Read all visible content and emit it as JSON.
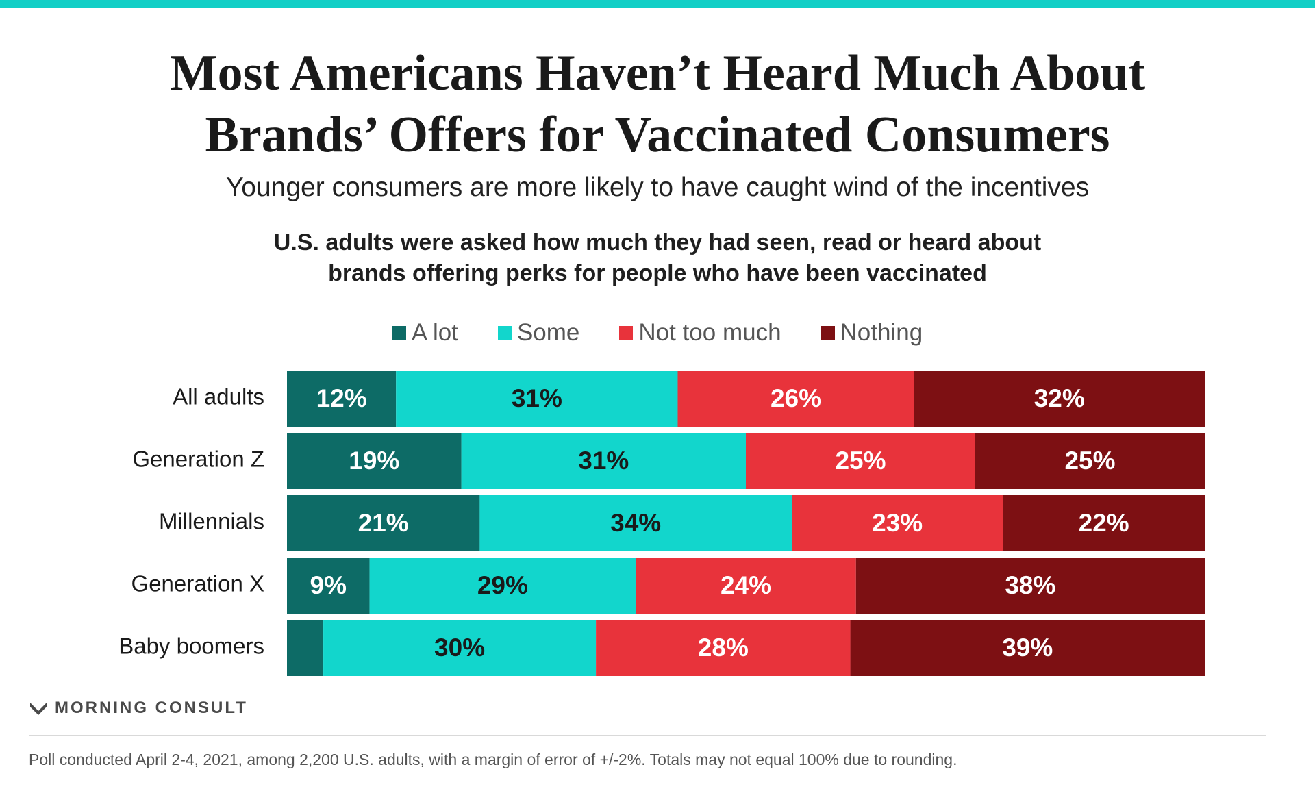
{
  "title_lines": [
    "Most Americans Haven’t Heard Much About",
    "Brands’ Offers for Vaccinated Consumers"
  ],
  "subtitle": "Younger consumers are more likely to have caught wind of the incentives",
  "question_lines": [
    "U.S. adults were asked how much they had seen, read or heard about",
    "brands offering perks for people who have been vaccinated"
  ],
  "colors": {
    "a_lot": "#0d6b66",
    "some": "#12d6cc",
    "not_too_much": "#e8333b",
    "nothing": "#7d1013",
    "accent_top": "#12cfc6"
  },
  "chart_data": {
    "type": "bar",
    "orientation": "horizontal",
    "stacked": true,
    "legend_position": "top",
    "grid": false,
    "categories": [
      "All adults",
      "Generation Z",
      "Millennials",
      "Generation X",
      "Baby boomers"
    ],
    "series": [
      {
        "name": "A lot",
        "color": "#0d6b66",
        "label_color": "#ffffff",
        "values": [
          12,
          19,
          21,
          9,
          4
        ],
        "labels": [
          "12%",
          "19%",
          "21%",
          "9%",
          ""
        ]
      },
      {
        "name": "Some",
        "color": "#12d6cc",
        "label_color": "#1a1a1a",
        "values": [
          31,
          31,
          34,
          29,
          30
        ],
        "labels": [
          "31%",
          "31%",
          "34%",
          "29%",
          "30%"
        ]
      },
      {
        "name": "Not too much",
        "color": "#e8333b",
        "label_color": "#ffffff",
        "values": [
          26,
          25,
          23,
          24,
          28
        ],
        "labels": [
          "26%",
          "25%",
          "23%",
          "24%",
          "28%"
        ]
      },
      {
        "name": "Nothing",
        "color": "#7d1013",
        "label_color": "#ffffff",
        "values": [
          32,
          25,
          22,
          38,
          39
        ],
        "labels": [
          "32%",
          "25%",
          "22%",
          "38%",
          "39%"
        ]
      }
    ]
  },
  "logo": {
    "text": "MORNING CONSULT",
    "icon": "morning-consult-logo-icon"
  },
  "footnote": "Poll conducted April 2-4, 2021, among 2,200 U.S. adults, with a margin of error of +/-2%. Totals may not equal 100% due to rounding."
}
